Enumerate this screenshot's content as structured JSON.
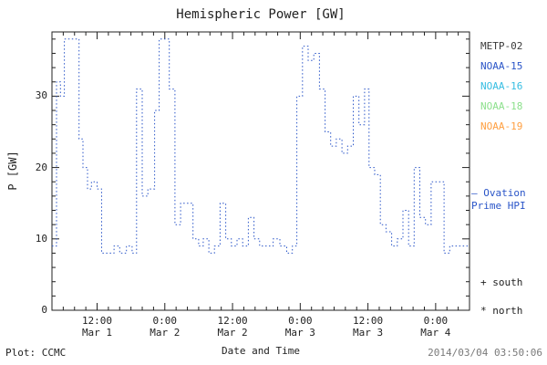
{
  "footer": {
    "left": "Plot: CCMC",
    "right": "2014/03/04 03:50:06"
  },
  "legend": {
    "satellites": [
      {
        "label": "METP-02",
        "color": "#3a3a3a"
      },
      {
        "label": "NOAA-15",
        "color": "#2a55c8"
      },
      {
        "label": "NOAA-16",
        "color": "#35bde2"
      },
      {
        "label": "NOAA-18",
        "color": "#8ce08c"
      },
      {
        "label": "NOAA-19",
        "color": "#ff9f40"
      }
    ],
    "ovation": {
      "line1": "– Ovation",
      "line2": "Prime HPI",
      "color": "#2a55c8"
    },
    "hemisphere_markers": [
      {
        "symbol": "+",
        "label": "south"
      },
      {
        "symbol": "*",
        "label": "north"
      }
    ]
  },
  "chart_data": {
    "type": "line",
    "line_style": "dotted-step",
    "line_color": "#2a55c8",
    "axis_color": "#222222",
    "title": "Hemispheric Power [GW]",
    "xlabel": "Date and Time",
    "ylabel": "P [GW]",
    "ylim": [
      0,
      39
    ],
    "xlim_hours": [
      4,
      78
    ],
    "y_ticks": [
      0,
      10,
      20,
      30
    ],
    "y_minor_step": 2,
    "x_minor_step": 2,
    "x_ticks": [
      {
        "hour": 12,
        "time": "12:00",
        "date": "Mar 1"
      },
      {
        "hour": 24,
        "time": "0:00",
        "date": "Mar 2"
      },
      {
        "hour": 36,
        "time": "12:00",
        "date": "Mar 2"
      },
      {
        "hour": 48,
        "time": "0:00",
        "date": "Mar 3"
      },
      {
        "hour": 60,
        "time": "12:00",
        "date": "Mar 3"
      },
      {
        "hour": 72,
        "time": "0:00",
        "date": "Mar 4"
      }
    ],
    "series": [
      {
        "name": "Hemispheric Power (Ovation Prime HPI)",
        "points": [
          [
            4,
            9
          ],
          [
            4.8,
            32
          ],
          [
            5.5,
            30
          ],
          [
            6.2,
            38
          ],
          [
            7.5,
            38
          ],
          [
            8.8,
            24
          ],
          [
            9.5,
            20
          ],
          [
            10.3,
            17
          ],
          [
            11,
            18
          ],
          [
            12,
            17
          ],
          [
            12.8,
            8
          ],
          [
            14,
            8
          ],
          [
            15,
            9
          ],
          [
            16,
            8
          ],
          [
            17.2,
            9
          ],
          [
            18.2,
            8
          ],
          [
            19,
            31
          ],
          [
            20,
            16
          ],
          [
            21,
            17
          ],
          [
            22.2,
            28
          ],
          [
            23,
            38
          ],
          [
            24.3,
            38
          ],
          [
            24.8,
            31
          ],
          [
            25.8,
            12
          ],
          [
            26.8,
            15
          ],
          [
            28,
            15
          ],
          [
            29,
            10
          ],
          [
            30,
            9
          ],
          [
            30.8,
            10
          ],
          [
            31.8,
            8
          ],
          [
            32.8,
            9
          ],
          [
            33.8,
            15
          ],
          [
            34.8,
            10
          ],
          [
            35.8,
            9
          ],
          [
            36.8,
            10
          ],
          [
            37.8,
            9
          ],
          [
            38.8,
            13
          ],
          [
            39.8,
            10
          ],
          [
            40.8,
            9
          ],
          [
            42,
            9
          ],
          [
            43.2,
            10
          ],
          [
            44.4,
            9
          ],
          [
            45.6,
            8
          ],
          [
            46.6,
            9
          ],
          [
            47.4,
            30
          ],
          [
            48.4,
            37
          ],
          [
            49.4,
            35
          ],
          [
            50.4,
            36
          ],
          [
            51.4,
            31
          ],
          [
            52.4,
            25
          ],
          [
            53.4,
            23
          ],
          [
            54.4,
            24
          ],
          [
            55.4,
            22
          ],
          [
            56.4,
            23
          ],
          [
            57.4,
            30
          ],
          [
            58.4,
            26
          ],
          [
            59.4,
            31
          ],
          [
            60.2,
            20
          ],
          [
            61.2,
            19
          ],
          [
            62.2,
            12
          ],
          [
            63.2,
            11
          ],
          [
            64.2,
            9
          ],
          [
            65.2,
            10
          ],
          [
            66.2,
            14
          ],
          [
            67.2,
            9
          ],
          [
            68.2,
            20
          ],
          [
            69.2,
            13
          ],
          [
            70.2,
            12
          ],
          [
            71.2,
            18
          ],
          [
            72.5,
            18
          ],
          [
            73.5,
            8
          ],
          [
            74.5,
            9
          ],
          [
            76,
            9
          ],
          [
            78,
            9
          ]
        ]
      }
    ]
  }
}
